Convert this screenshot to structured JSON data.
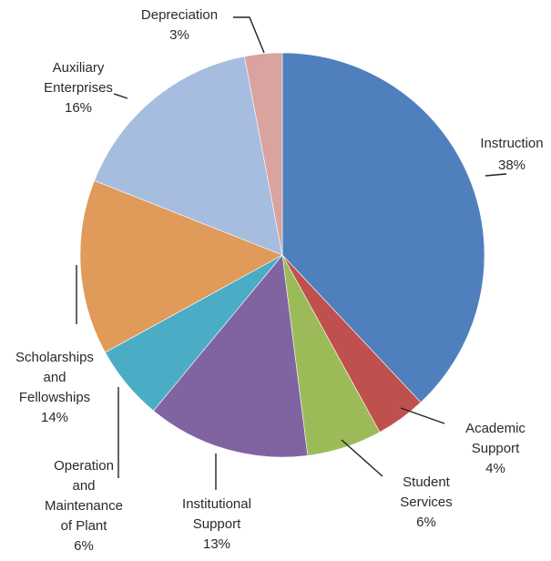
{
  "chart_data": {
    "type": "pie",
    "title": "",
    "slices": [
      {
        "name": "Instruction",
        "label_lines": [
          "Instruction",
          "38%"
        ],
        "value": 38,
        "color": "#4f7fbd"
      },
      {
        "name": "Academic Support",
        "label_lines": [
          "Academic",
          "Support",
          "4%"
        ],
        "value": 4,
        "color": "#c0504d"
      },
      {
        "name": "Student Services",
        "label_lines": [
          "Student",
          "Services",
          "6%"
        ],
        "value": 6,
        "color": "#9bbb59"
      },
      {
        "name": "Institutional Support",
        "label_lines": [
          "Institutional",
          "Support",
          "13%"
        ],
        "value": 13,
        "color": "#8064a2"
      },
      {
        "name": "Operation and Maintenance of Plant",
        "label_lines": [
          "Operation",
          "and",
          "Maintenance",
          "of Plant",
          "6%"
        ],
        "value": 6,
        "color": "#4bacc6"
      },
      {
        "name": "Scholarships and Fellowships",
        "label_lines": [
          "Scholarships",
          "and",
          "Fellowships",
          "14%"
        ],
        "value": 14,
        "color": "#e09a5a"
      },
      {
        "name": "Auxiliary Enterprises",
        "label_lines": [
          "Auxiliary",
          "Enterprises",
          "16%"
        ],
        "value": 16,
        "color": "#a7bde0"
      },
      {
        "name": "Depreciation",
        "label_lines": [
          "Depreciation",
          "3%"
        ],
        "value": 3,
        "color": "#d9a3a0"
      }
    ],
    "start_angle": "12 o'clock",
    "direction": "clockwise",
    "legend": "none",
    "labels_outside_with_leader_lines": true
  }
}
